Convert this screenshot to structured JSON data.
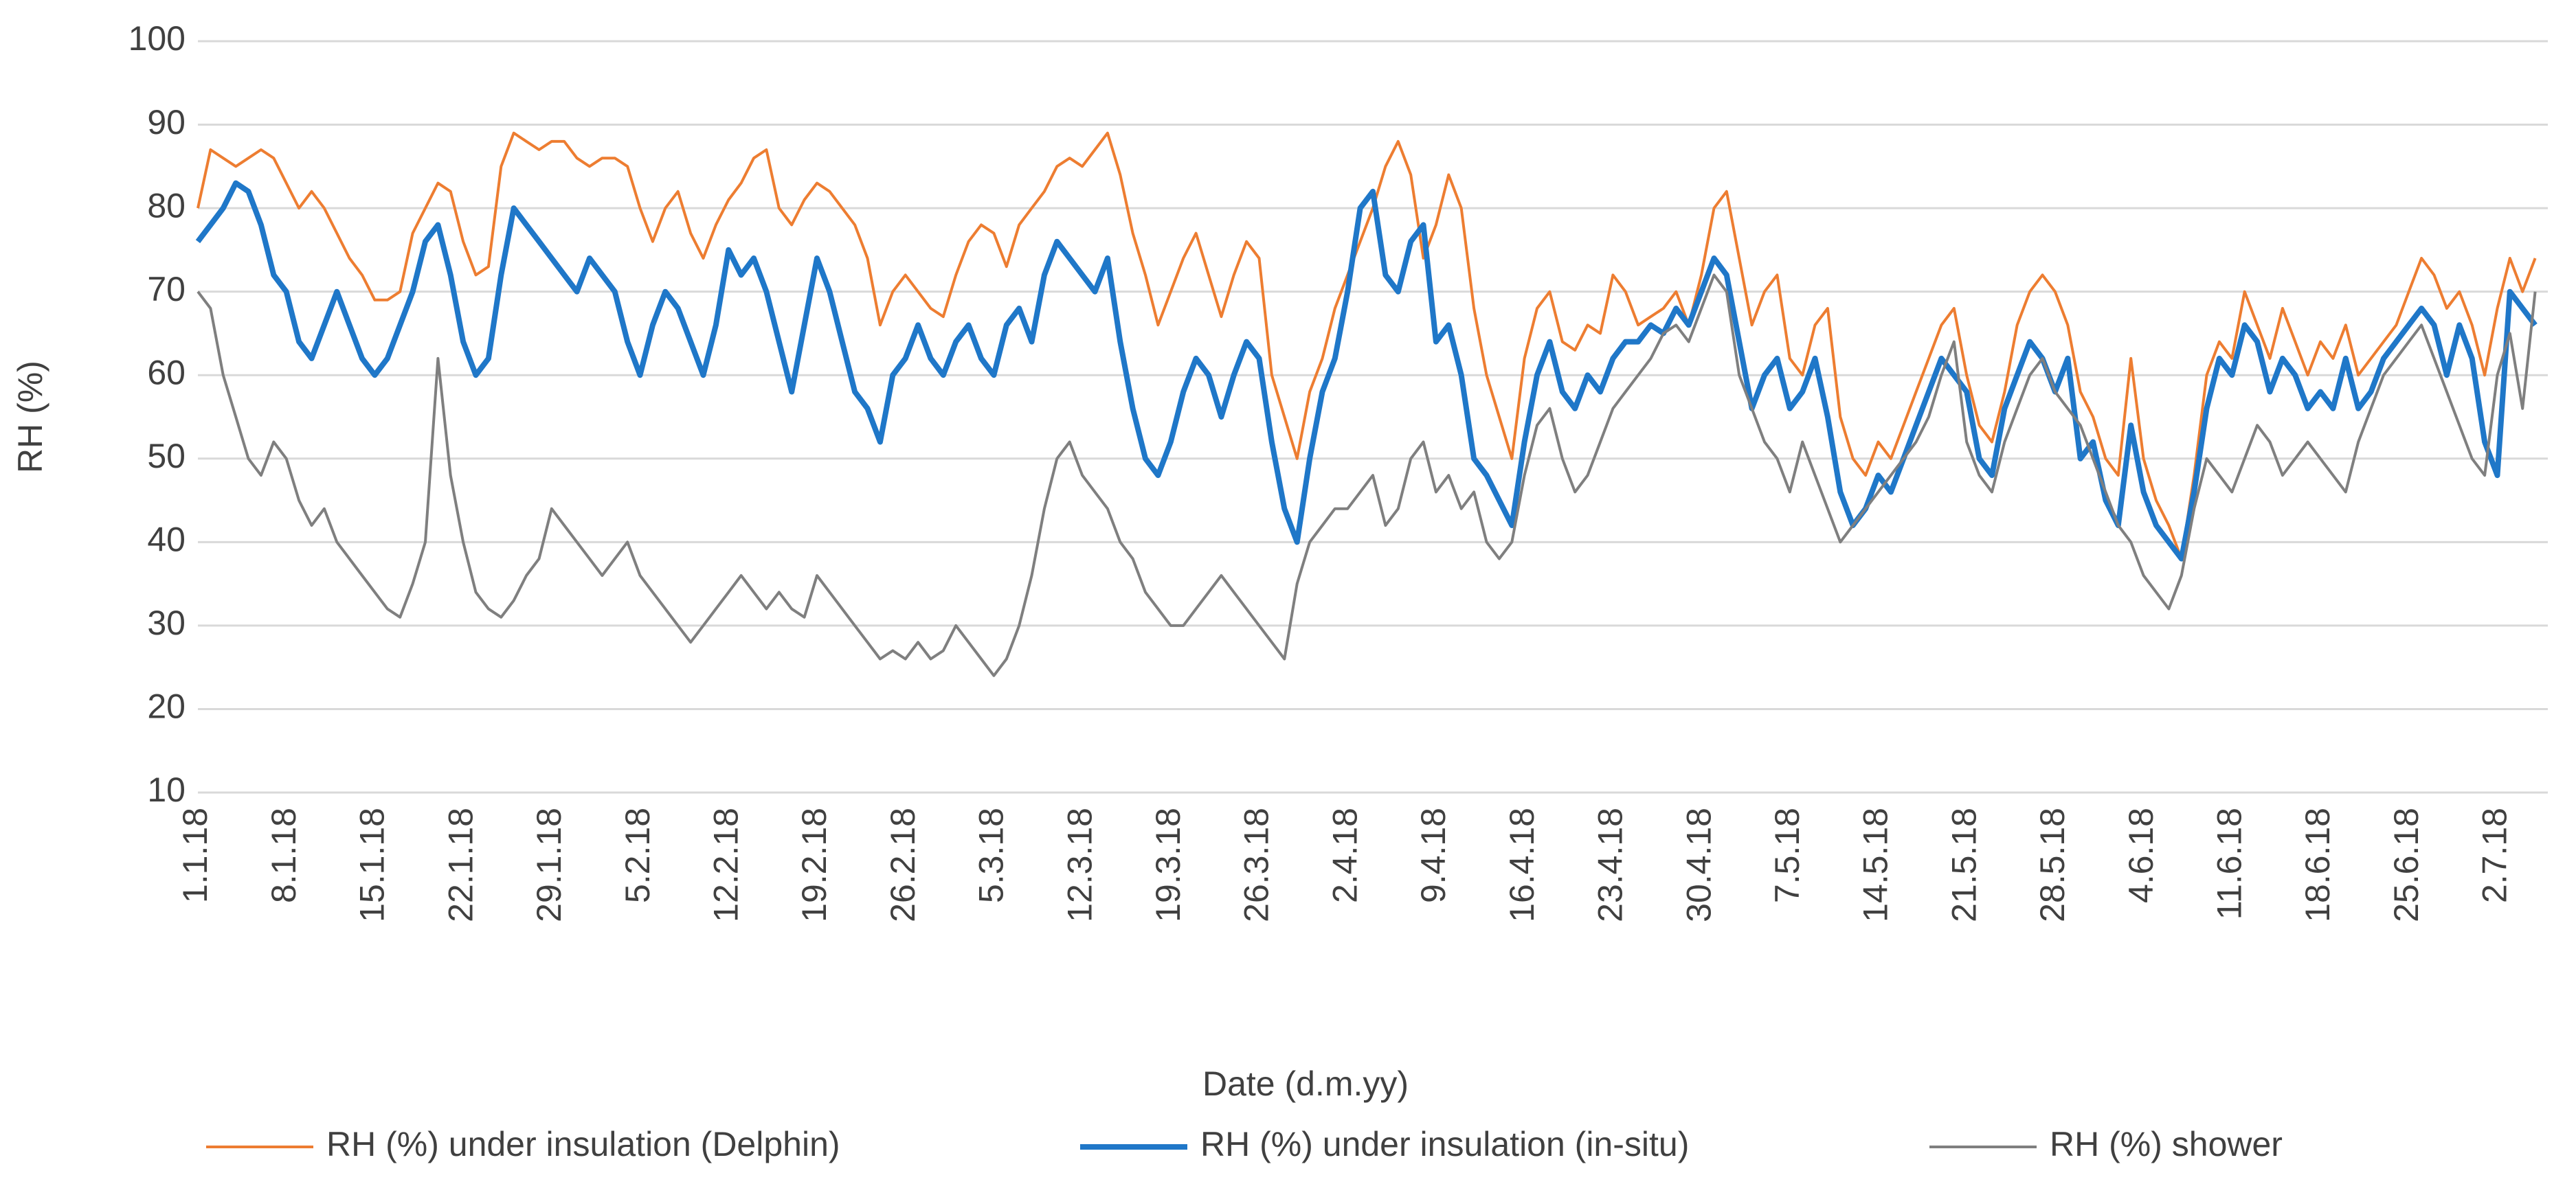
{
  "chart_data": {
    "type": "line",
    "x_label": "Date (d.m.yy)",
    "y_label": "RH (%)",
    "ylim": [
      10,
      100
    ],
    "yticks": [
      10,
      20,
      30,
      40,
      50,
      60,
      70,
      80,
      90,
      100
    ],
    "grid": true,
    "legend": "bottom",
    "categories": [
      "1.1.18",
      null,
      null,
      null,
      null,
      null,
      null,
      "8.1.18",
      null,
      null,
      null,
      null,
      null,
      null,
      "15.1.18",
      null,
      null,
      null,
      null,
      null,
      null,
      "22.1.18",
      null,
      null,
      null,
      null,
      null,
      null,
      "29.1.18",
      null,
      null,
      null,
      null,
      null,
      null,
      "5.2.18",
      null,
      null,
      null,
      null,
      null,
      null,
      "12.2.18",
      null,
      null,
      null,
      null,
      null,
      null,
      "19.2.18",
      null,
      null,
      null,
      null,
      null,
      null,
      "26.2.18",
      null,
      null,
      null,
      null,
      null,
      null,
      "5.3.18",
      null,
      null,
      null,
      null,
      null,
      null,
      "12.3.18",
      null,
      null,
      null,
      null,
      null,
      null,
      "19.3.18",
      null,
      null,
      null,
      null,
      null,
      null,
      "26.3.18",
      null,
      null,
      null,
      null,
      null,
      null,
      "2.4.18",
      null,
      null,
      null,
      null,
      null,
      null,
      "9.4.18",
      null,
      null,
      null,
      null,
      null,
      null,
      "16.4.18",
      null,
      null,
      null,
      null,
      null,
      null,
      "23.4.18",
      null,
      null,
      null,
      null,
      null,
      null,
      "30.4.18",
      null,
      null,
      null,
      null,
      null,
      null,
      "7.5.18",
      null,
      null,
      null,
      null,
      null,
      null,
      "14.5.18",
      null,
      null,
      null,
      null,
      null,
      null,
      "21.5.18",
      null,
      null,
      null,
      null,
      null,
      null,
      "28.5.18",
      null,
      null,
      null,
      null,
      null,
      null,
      "4.6.18",
      null,
      null,
      null,
      null,
      null,
      null,
      "11.6.18",
      null,
      null,
      null,
      null,
      null,
      null,
      "18.6.18",
      null,
      null,
      null,
      null,
      null,
      null,
      "25.6.18",
      null,
      null,
      null,
      null,
      null,
      null,
      "2.7.18",
      null,
      null,
      null
    ],
    "series": [
      {
        "name": "RH (%) under insulation (Delphin)",
        "color": "#ED7D31",
        "width": 4,
        "values": [
          80,
          87,
          86,
          85,
          86,
          87,
          86,
          83,
          80,
          82,
          80,
          77,
          74,
          72,
          69,
          69,
          70,
          77,
          80,
          83,
          82,
          76,
          72,
          73,
          85,
          89,
          88,
          87,
          88,
          88,
          86,
          85,
          86,
          86,
          85,
          80,
          76,
          80,
          82,
          77,
          74,
          78,
          81,
          83,
          86,
          87,
          80,
          78,
          81,
          83,
          82,
          80,
          78,
          74,
          66,
          70,
          72,
          70,
          68,
          67,
          72,
          76,
          78,
          77,
          73,
          78,
          80,
          82,
          85,
          86,
          85,
          87,
          89,
          84,
          77,
          72,
          66,
          70,
          74,
          77,
          72,
          67,
          72,
          76,
          74,
          60,
          55,
          50,
          58,
          62,
          68,
          72,
          76,
          80,
          85,
          88,
          84,
          74,
          78,
          84,
          80,
          68,
          60,
          55,
          50,
          62,
          68,
          70,
          64,
          63,
          66,
          65,
          72,
          70,
          66,
          67,
          68,
          70,
          66,
          72,
          80,
          82,
          74,
          66,
          70,
          72,
          62,
          60,
          66,
          68,
          55,
          50,
          48,
          52,
          50,
          54,
          58,
          62,
          66,
          68,
          60,
          54,
          52,
          58,
          66,
          70,
          72,
          70,
          66,
          58,
          55,
          50,
          48,
          62,
          50,
          45,
          42,
          38,
          48,
          60,
          64,
          62,
          70,
          66,
          62,
          68,
          64,
          60,
          64,
          62,
          66,
          60,
          62,
          64,
          66,
          70,
          74,
          72,
          68,
          70,
          66,
          60,
          68,
          74,
          70,
          74
        ]
      },
      {
        "name": "RH (%) under insulation (in-situ)",
        "color": "#1F77C8",
        "width": 8,
        "values": [
          76,
          78,
          80,
          83,
          82,
          78,
          72,
          70,
          64,
          62,
          66,
          70,
          66,
          62,
          60,
          62,
          66,
          70,
          76,
          78,
          72,
          64,
          60,
          62,
          72,
          80,
          78,
          76,
          74,
          72,
          70,
          74,
          72,
          70,
          64,
          60,
          66,
          70,
          68,
          64,
          60,
          66,
          75,
          72,
          74,
          70,
          64,
          58,
          66,
          74,
          70,
          64,
          58,
          56,
          52,
          60,
          62,
          66,
          62,
          60,
          64,
          66,
          62,
          60,
          66,
          68,
          64,
          72,
          76,
          74,
          72,
          70,
          74,
          64,
          56,
          50,
          48,
          52,
          58,
          62,
          60,
          55,
          60,
          64,
          62,
          52,
          44,
          40,
          50,
          58,
          62,
          70,
          80,
          82,
          72,
          70,
          76,
          78,
          64,
          66,
          60,
          50,
          48,
          45,
          42,
          52,
          60,
          64,
          58,
          56,
          60,
          58,
          62,
          64,
          64,
          66,
          65,
          68,
          66,
          70,
          74,
          72,
          64,
          56,
          60,
          62,
          56,
          58,
          62,
          55,
          46,
          42,
          44,
          48,
          46,
          50,
          54,
          58,
          62,
          60,
          58,
          50,
          48,
          56,
          60,
          64,
          62,
          58,
          62,
          50,
          52,
          45,
          42,
          54,
          46,
          42,
          40,
          38,
          46,
          56,
          62,
          60,
          66,
          64,
          58,
          62,
          60,
          56,
          58,
          56,
          62,
          56,
          58,
          62,
          64,
          66,
          68,
          66,
          60,
          66,
          62,
          52,
          48,
          70,
          68,
          66
        ]
      },
      {
        "name": "RH (%) shower",
        "color": "#7F7F7F",
        "width": 4,
        "values": [
          70,
          68,
          60,
          55,
          50,
          48,
          52,
          50,
          45,
          42,
          44,
          40,
          38,
          36,
          34,
          32,
          31,
          35,
          40,
          62,
          48,
          40,
          34,
          32,
          31,
          33,
          36,
          38,
          44,
          42,
          40,
          38,
          36,
          38,
          40,
          36,
          34,
          32,
          30,
          28,
          30,
          32,
          34,
          36,
          34,
          32,
          34,
          32,
          31,
          36,
          34,
          32,
          30,
          28,
          26,
          27,
          26,
          28,
          26,
          27,
          30,
          28,
          26,
          24,
          26,
          30,
          36,
          44,
          50,
          52,
          48,
          46,
          44,
          40,
          38,
          34,
          32,
          30,
          30,
          32,
          34,
          36,
          34,
          32,
          30,
          28,
          26,
          35,
          40,
          42,
          44,
          44,
          46,
          48,
          42,
          44,
          50,
          52,
          46,
          48,
          44,
          46,
          40,
          38,
          40,
          48,
          54,
          56,
          50,
          46,
          48,
          52,
          56,
          58,
          60,
          62,
          65,
          66,
          64,
          68,
          72,
          70,
          60,
          56,
          52,
          50,
          46,
          52,
          48,
          44,
          40,
          42,
          44,
          46,
          48,
          50,
          52,
          55,
          60,
          64,
          52,
          48,
          46,
          52,
          56,
          60,
          62,
          58,
          56,
          54,
          50,
          46,
          42,
          40,
          36,
          34,
          32,
          36,
          44,
          50,
          48,
          46,
          50,
          54,
          52,
          48,
          50,
          52,
          50,
          48,
          46,
          52,
          56,
          60,
          62,
          64,
          66,
          62,
          58,
          54,
          50,
          48,
          60,
          65,
          56,
          70
        ]
      }
    ]
  }
}
